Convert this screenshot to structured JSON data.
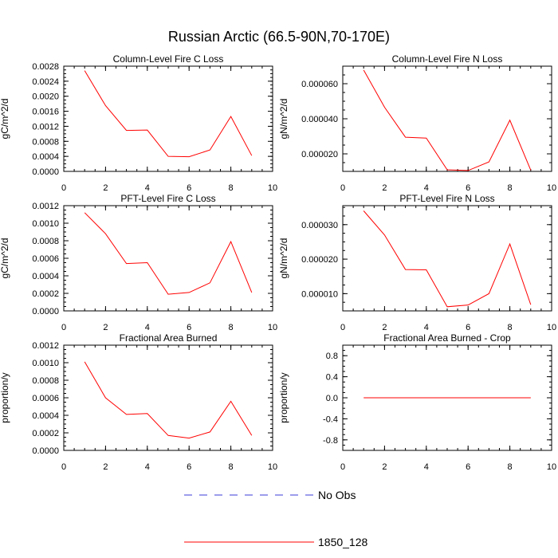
{
  "figure": {
    "title": "Russian Arctic (66.5-90N,70-170E)",
    "line_color": "#ff0000",
    "obs_color": "#3b3bd9"
  },
  "legend": {
    "placement": "bottom-center",
    "entries": [
      {
        "label": "No Obs",
        "style": "dashed",
        "color": "#3b3bd9"
      },
      {
        "label": "1850_128",
        "style": "solid",
        "color": "#ff0000"
      }
    ]
  },
  "chart_data": [
    {
      "type": "line",
      "title": "Column-Level Fire C Loss",
      "ylabel": "gC/m^2/d",
      "xlim": [
        0,
        10
      ],
      "xticks": [
        "0",
        "2",
        "4",
        "6",
        "8",
        "10"
      ],
      "ylim": [
        0,
        0.0028
      ],
      "yticks": [
        "0.0000",
        "0.0004",
        "0.0008",
        "0.0012",
        "0.0016",
        "0.0020",
        "0.0024",
        "0.0028"
      ],
      "series": [
        {
          "name": "1850_128",
          "x": [
            1,
            2,
            3,
            4,
            5,
            6,
            7,
            8,
            9
          ],
          "y": [
            0.00268,
            0.00175,
            0.00109,
            0.0011,
            0.0004,
            0.00039,
            0.00057,
            0.00146,
            0.00042
          ]
        }
      ]
    },
    {
      "type": "line",
      "title": "Column-Level Fire N Loss",
      "ylabel": "gN/m^2/d",
      "xlim": [
        0,
        10
      ],
      "xticks": [
        "0",
        "2",
        "4",
        "6",
        "8",
        "10"
      ],
      "ylim": [
        1e-05,
        7e-05
      ],
      "yticks": [
        "0.000020",
        "0.000040",
        "0.000060"
      ],
      "series": [
        {
          "name": "1850_128",
          "x": [
            1,
            2,
            3,
            4,
            5,
            6,
            7,
            8,
            9
          ],
          "y": [
            6.78e-05,
            4.66e-05,
            2.95e-05,
            2.9e-05,
            1.09e-05,
            1.05e-05,
            1.54e-05,
            3.92e-05,
            1.07e-05
          ]
        }
      ]
    },
    {
      "type": "line",
      "title": "PFT-Level Fire C Loss",
      "ylabel": "gC/m^2/d",
      "xlim": [
        0,
        10
      ],
      "xticks": [
        "0",
        "2",
        "4",
        "6",
        "8",
        "10"
      ],
      "ylim": [
        0,
        0.0012
      ],
      "yticks": [
        "0.0000",
        "0.0002",
        "0.0004",
        "0.0006",
        "0.0008",
        "0.0010",
        "0.0012"
      ],
      "series": [
        {
          "name": "1850_128",
          "x": [
            1,
            2,
            3,
            4,
            5,
            6,
            7,
            8,
            9
          ],
          "y": [
            0.00112,
            0.00088,
            0.00054,
            0.00055,
            0.00019,
            0.00021,
            0.00032,
            0.00079,
            0.00021
          ]
        }
      ]
    },
    {
      "type": "line",
      "title": "PFT-Level Fire N Loss",
      "ylabel": "gN/m^2/d",
      "xlim": [
        0,
        10
      ],
      "xticks": [
        "0",
        "2",
        "4",
        "6",
        "8",
        "10"
      ],
      "ylim": [
        5e-06,
        3.55e-05
      ],
      "yticks": [
        "0.000010",
        "0.000020",
        "0.000030"
      ],
      "series": [
        {
          "name": "1850_128",
          "x": [
            1,
            2,
            3,
            4,
            5,
            6,
            7,
            8,
            9
          ],
          "y": [
            3.4e-05,
            2.7e-05,
            1.7e-05,
            1.69e-05,
            6.2e-06,
            6.7e-06,
            1e-05,
            2.44e-05,
            6.8e-06
          ]
        }
      ]
    },
    {
      "type": "line",
      "title": "Fractional Area Burned",
      "ylabel": "proportion/y",
      "xlim": [
        0,
        10
      ],
      "xticks": [
        "0",
        "2",
        "4",
        "6",
        "8",
        "10"
      ],
      "ylim": [
        0,
        0.0012
      ],
      "yticks": [
        "0.0000",
        "0.0002",
        "0.0004",
        "0.0006",
        "0.0008",
        "0.0010",
        "0.0012"
      ],
      "series": [
        {
          "name": "1850_128",
          "x": [
            1,
            2,
            3,
            4,
            5,
            6,
            7,
            8,
            9
          ],
          "y": [
            0.00101,
            0.0006,
            0.00041,
            0.00042,
            0.00017,
            0.00014,
            0.00021,
            0.00056,
            0.00017
          ]
        }
      ]
    },
    {
      "type": "line",
      "title": "Fractional Area Burned - Crop",
      "ylabel": "proportion/y",
      "xlim": [
        0,
        10
      ],
      "xticks": [
        "0",
        "2",
        "4",
        "6",
        "8",
        "10"
      ],
      "ylim": [
        -1,
        1
      ],
      "yticks": [
        "-0.8",
        "-0.4",
        "0.0",
        "0.4",
        "0.8"
      ],
      "series": [
        {
          "name": "1850_128",
          "x": [
            1,
            2,
            3,
            4,
            5,
            6,
            7,
            8,
            9
          ],
          "y": [
            0,
            0,
            0,
            0,
            0,
            0,
            0,
            0,
            0
          ]
        }
      ]
    }
  ]
}
